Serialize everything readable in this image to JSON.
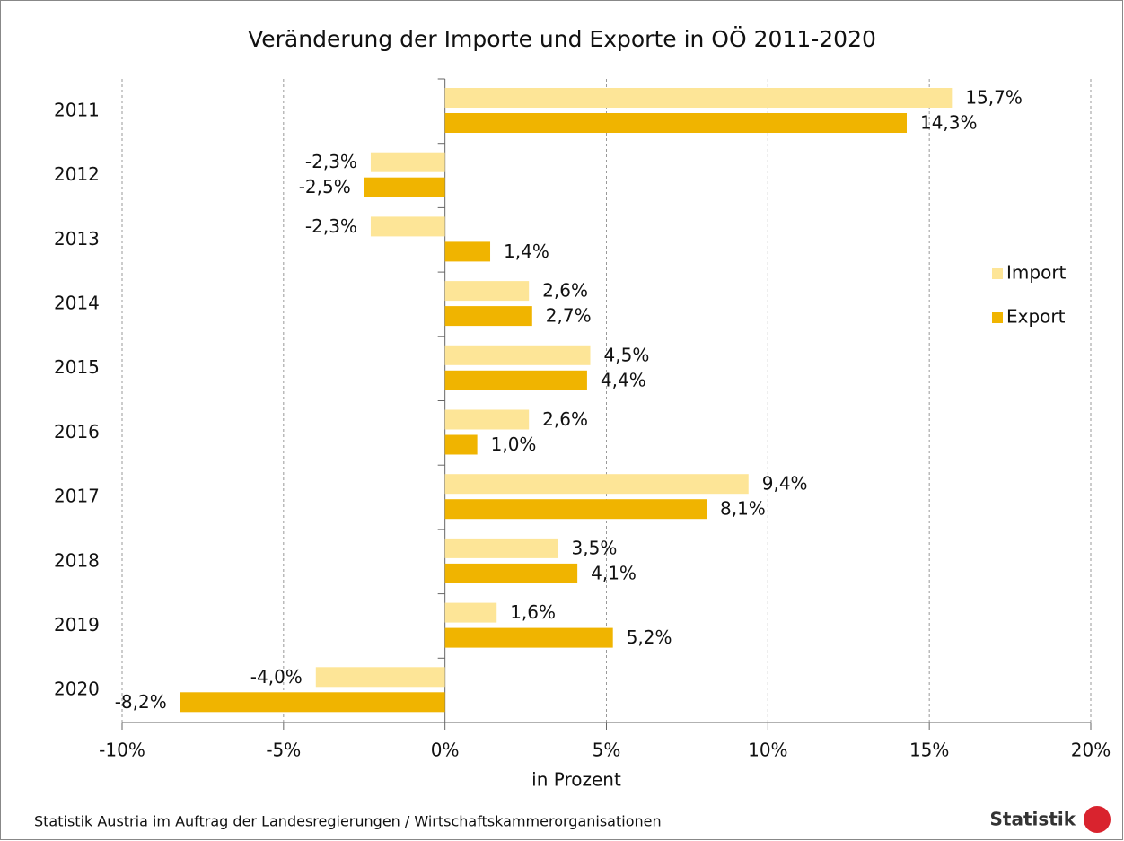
{
  "chart_data": {
    "type": "hbar",
    "title": "Veränderung der Importe und Exporte in OÖ 2011-2020",
    "x_label": "in Prozent",
    "source": "Statistik Austria im Auftrag der Landesregierungen / Wirtschaftskammerorganisationen",
    "logo": "Statistik",
    "categories": [
      "2011",
      "2012",
      "2013",
      "2014",
      "2015",
      "2016",
      "2017",
      "2018",
      "2019",
      "2020"
    ],
    "series": [
      {
        "name": "Import",
        "color": "#fde597",
        "values": [
          15.7,
          -2.3,
          -2.3,
          2.6,
          4.5,
          2.6,
          9.4,
          3.5,
          1.6,
          -4.0
        ],
        "value_labels": [
          "15,7%",
          "-2,3%",
          "-2,3%",
          "2,6%",
          "4,5%",
          "2,6%",
          "9,4%",
          "3,5%",
          "1,6%",
          "-4,0%"
        ]
      },
      {
        "name": "Export",
        "color": "#f0b400",
        "values": [
          14.3,
          -2.5,
          1.4,
          2.7,
          4.4,
          1.0,
          8.1,
          4.1,
          5.2,
          -8.2
        ],
        "value_labels": [
          "14,3%",
          "-2,5%",
          "1,4%",
          "2,7%",
          "4,4%",
          "1,0%",
          "8,1%",
          "4,1%",
          "5,2%",
          "-8,2%"
        ]
      }
    ],
    "xlim": [
      -10,
      20
    ],
    "xticks": [
      {
        "value": -10,
        "label": "-10%"
      },
      {
        "value": -5,
        "label": "-5%"
      },
      {
        "value": 0,
        "label": "0%"
      },
      {
        "value": 5,
        "label": "5%"
      },
      {
        "value": 10,
        "label": "10%"
      },
      {
        "value": 15,
        "label": "15%"
      },
      {
        "value": 20,
        "label": "20%"
      }
    ],
    "grid": true,
    "legend": "right"
  }
}
